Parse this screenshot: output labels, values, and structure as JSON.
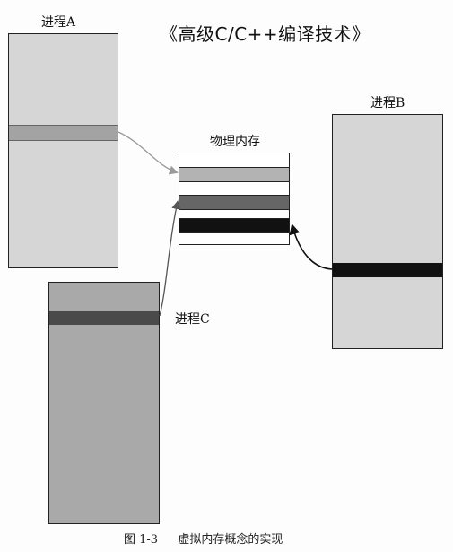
{
  "header": {
    "title": "《高级C/C++编译技术》"
  },
  "labels": {
    "process_a": "进程A",
    "process_b": "进程B",
    "process_c": "进程C",
    "physical_memory": "物理内存"
  },
  "caption": {
    "figure_number": "图 1-3",
    "figure_text": "虚拟内存概念的实现"
  },
  "colors": {
    "process_fill": "#d6d6d6",
    "process_c_fill": "#a9a9a9",
    "band_a": "#a3a3a3",
    "band_b": "#111111",
    "band_c": "#4a4a4a",
    "mem_row_a": "#b3b3b3",
    "mem_row_c": "#666666",
    "mem_row_b": "#111111",
    "arrow_light": "#9a9a9a",
    "arrow_mid": "#555555",
    "arrow_dark": "#111111"
  }
}
